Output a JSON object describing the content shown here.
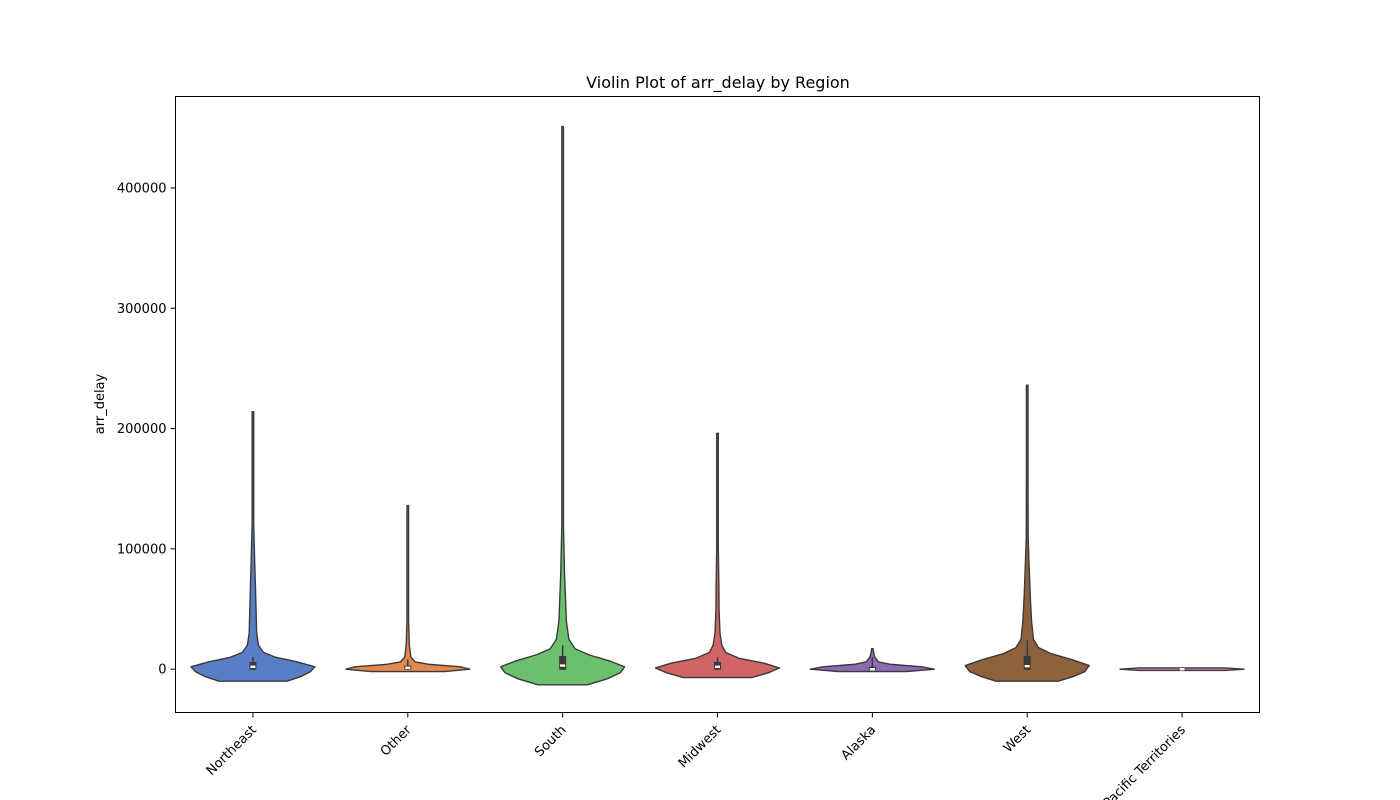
{
  "chart_data": {
    "type": "violin",
    "title": "Violin Plot of arr_delay by Region",
    "xlabel": "",
    "ylabel": "arr_delay",
    "ylim": [
      -36000,
      476000
    ],
    "yticks": [
      0,
      100000,
      200000,
      300000,
      400000
    ],
    "ytick_labels": [
      "0",
      "100000",
      "200000",
      "300000",
      "400000"
    ],
    "categories": [
      "Northeast",
      "Other",
      "South",
      "Midwest",
      "Alaska",
      "West",
      "Pacific Territories"
    ],
    "grid": false,
    "legend": "none",
    "series": [
      {
        "category": "Northeast",
        "color": "#5a7ec6",
        "max": 214000,
        "min": -10000,
        "median": 2000,
        "q1": -500,
        "q3": 6000,
        "whisker_high": 10000,
        "whisker_low": -500,
        "density": [
          [
            -10000,
            0.55
          ],
          [
            -6000,
            0.78
          ],
          [
            -2000,
            0.93
          ],
          [
            2000,
            1.0
          ],
          [
            6000,
            0.72
          ],
          [
            10000,
            0.36
          ],
          [
            14000,
            0.17
          ],
          [
            20000,
            0.09
          ],
          [
            30000,
            0.06
          ],
          [
            50000,
            0.05
          ],
          [
            70000,
            0.04
          ],
          [
            90000,
            0.028
          ],
          [
            120000,
            0.012
          ],
          [
            170000,
            0.005
          ],
          [
            214000,
            0.003
          ]
        ]
      },
      {
        "category": "Other",
        "color": "#e3894f",
        "max": 136000,
        "min": -2000,
        "median": 1200,
        "q1": -200,
        "q3": 3000,
        "whisker_high": 8000,
        "whisker_low": -500,
        "density": [
          [
            -2000,
            0.6
          ],
          [
            0,
            1.0
          ],
          [
            2000,
            0.85
          ],
          [
            4000,
            0.35
          ],
          [
            6000,
            0.12
          ],
          [
            10000,
            0.05
          ],
          [
            20000,
            0.025
          ],
          [
            40000,
            0.012
          ],
          [
            80000,
            0.006
          ],
          [
            136000,
            0.003
          ]
        ]
      },
      {
        "category": "South",
        "color": "#6ac06d",
        "max": 451000,
        "min": -13000,
        "median": 3000,
        "q1": -500,
        "q3": 11000,
        "whisker_high": 20000,
        "whisker_low": -500,
        "density": [
          [
            -13000,
            0.4
          ],
          [
            -8000,
            0.72
          ],
          [
            -3000,
            0.93
          ],
          [
            2000,
            1.0
          ],
          [
            7000,
            0.75
          ],
          [
            12000,
            0.42
          ],
          [
            17000,
            0.2
          ],
          [
            25000,
            0.1
          ],
          [
            40000,
            0.06
          ],
          [
            60000,
            0.045
          ],
          [
            80000,
            0.03
          ],
          [
            120000,
            0.012
          ],
          [
            200000,
            0.006
          ],
          [
            320000,
            0.004
          ],
          [
            451000,
            0.003
          ]
        ]
      },
      {
        "category": "Midwest",
        "color": "#d06466",
        "max": 196000,
        "min": -7000,
        "median": 2000,
        "q1": -500,
        "q3": 6000,
        "whisker_high": 10000,
        "whisker_low": -500,
        "density": [
          [
            -7000,
            0.55
          ],
          [
            -3000,
            0.82
          ],
          [
            1000,
            1.0
          ],
          [
            5000,
            0.75
          ],
          [
            9000,
            0.35
          ],
          [
            14000,
            0.13
          ],
          [
            20000,
            0.07
          ],
          [
            30000,
            0.04
          ],
          [
            50000,
            0.025
          ],
          [
            70000,
            0.022
          ],
          [
            100000,
            0.012
          ],
          [
            150000,
            0.006
          ],
          [
            196000,
            0.003
          ]
        ]
      },
      {
        "category": "Alaska",
        "color": "#8c6bb3",
        "max": 17000,
        "min": -2000,
        "median": 0,
        "q1": -800,
        "q3": 2000,
        "whisker_high": 10000,
        "whisker_low": -800,
        "density": [
          [
            -2000,
            0.55
          ],
          [
            0,
            1.0
          ],
          [
            2000,
            0.8
          ],
          [
            4000,
            0.3
          ],
          [
            6000,
            0.1
          ],
          [
            10000,
            0.04
          ],
          [
            14000,
            0.02
          ],
          [
            17000,
            0.006
          ]
        ]
      },
      {
        "category": "West",
        "color": "#8c613c",
        "max": 236000,
        "min": -10000,
        "median": 2500,
        "q1": -500,
        "q3": 11000,
        "whisker_high": 24000,
        "whisker_low": -500,
        "density": [
          [
            -10000,
            0.5
          ],
          [
            -6000,
            0.75
          ],
          [
            -2000,
            0.93
          ],
          [
            3000,
            1.0
          ],
          [
            8000,
            0.72
          ],
          [
            13000,
            0.38
          ],
          [
            18000,
            0.18
          ],
          [
            25000,
            0.1
          ],
          [
            40000,
            0.07
          ],
          [
            60000,
            0.05
          ],
          [
            80000,
            0.035
          ],
          [
            110000,
            0.015
          ],
          [
            160000,
            0.006
          ],
          [
            236000,
            0.003
          ]
        ]
      },
      {
        "category": "Pacific Territories",
        "color": "#dc7ec0",
        "max": 1000,
        "min": -1000,
        "median": 0,
        "q1": -400,
        "q3": 400,
        "whisker_high": 800,
        "whisker_low": -800,
        "density": [
          [
            -1000,
            0.7
          ],
          [
            0,
            1.0
          ],
          [
            1000,
            0.7
          ]
        ]
      }
    ]
  }
}
